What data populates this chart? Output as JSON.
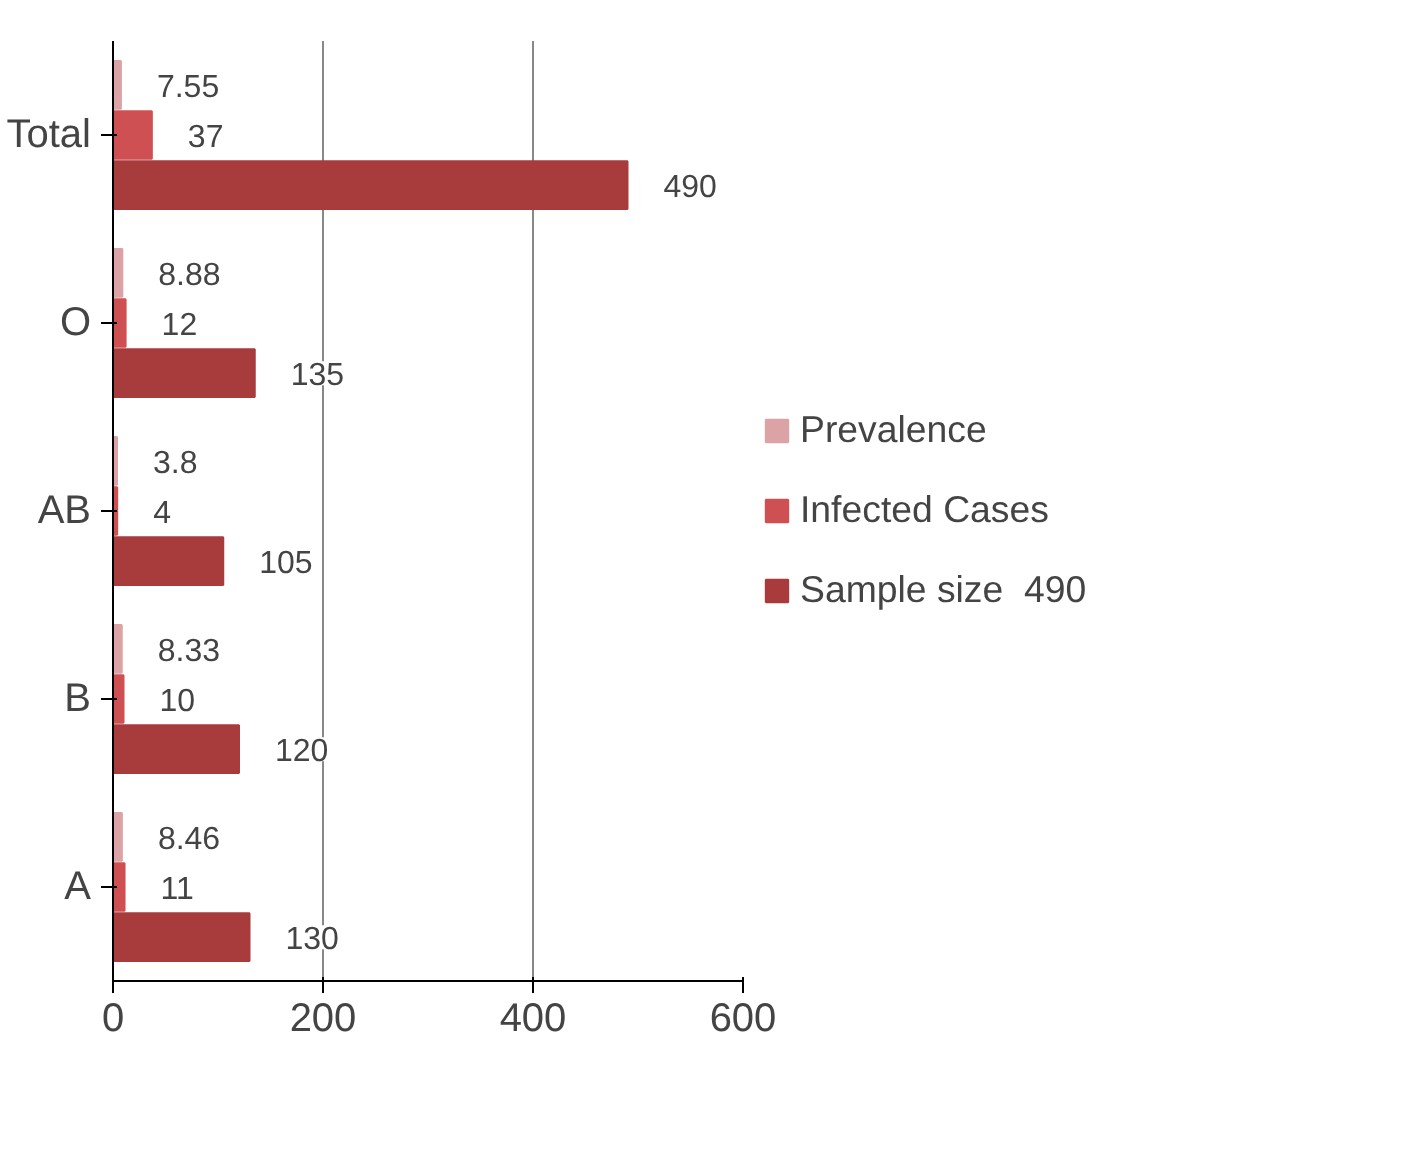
{
  "chart_data": {
    "type": "bar",
    "orientation": "horizontal",
    "categories": [
      "Total",
      "O",
      "AB",
      "B",
      "A"
    ],
    "series": [
      {
        "name": "Prevalence",
        "color": "#dca3a6",
        "values": [
          7.55,
          8.88,
          3.8,
          8.33,
          8.46
        ]
      },
      {
        "name": "Infected Cases",
        "color": "#cf5052",
        "values": [
          37,
          12,
          4,
          10,
          11
        ]
      },
      {
        "name": "Sample size  490",
        "color": "#a83b3c",
        "values": [
          490,
          135,
          105,
          120,
          130
        ]
      }
    ],
    "xlim": [
      0,
      600
    ],
    "xticks": [
      0,
      200,
      400,
      600
    ],
    "grid": "x",
    "legend": "right",
    "data_labels": true
  }
}
